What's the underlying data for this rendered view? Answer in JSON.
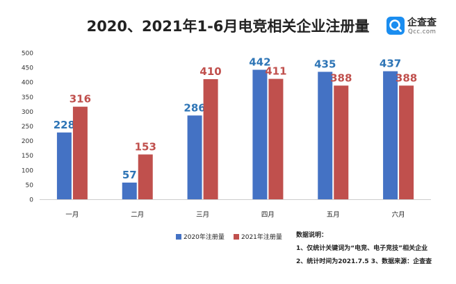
{
  "title": "2020、2021年1-6月电竞相关企业注册量",
  "logo": {
    "text": "企查查",
    "sub": "Qcc.com"
  },
  "notes": {
    "heading": "数据说明：",
    "lines": [
      "1、仅统计关键词为“电竞、电子竞技”相关企业",
      "2、统计时间为2021.7.5 3、数据来源：企查查"
    ]
  },
  "colors": {
    "series2020": "#4472C4",
    "series2021": "#C0504D",
    "label2020": "#2E75B6",
    "label2021": "#C0504D",
    "axis": "#cccccc"
  },
  "chart_data": {
    "type": "bar",
    "title": "2020、2021年1-6月电竞相关企业注册量",
    "categories": [
      "一月",
      "二月",
      "三月",
      "四月",
      "五月",
      "六月"
    ],
    "series": [
      {
        "name": "2020年注册量",
        "values": [
          228,
          57,
          286,
          442,
          435,
          437
        ]
      },
      {
        "name": "2021年注册量",
        "values": [
          316,
          153,
          410,
          411,
          388,
          388
        ]
      }
    ],
    "yticks": [
      "0",
      "50",
      "100",
      "150",
      "200",
      "250",
      "300",
      "350",
      "400",
      "450",
      "500"
    ],
    "ylim": [
      0,
      500
    ],
    "legend_position": "bottom",
    "grid": false,
    "data_labels": true
  }
}
